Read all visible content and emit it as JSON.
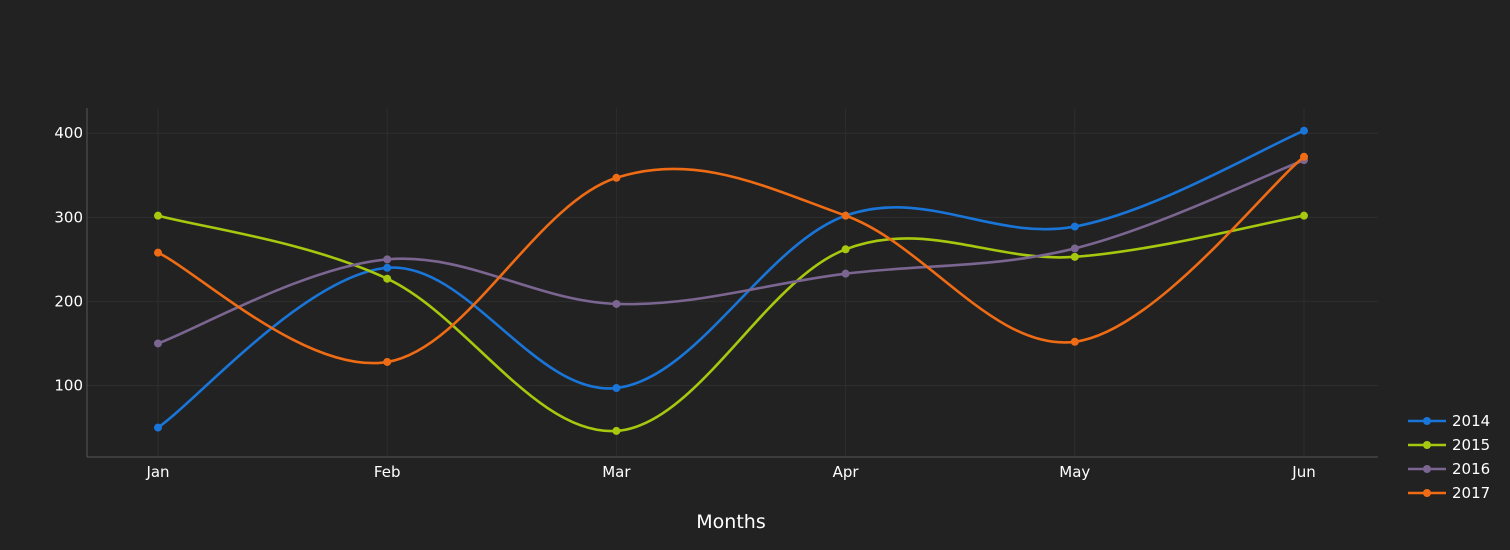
{
  "chart_data": {
    "type": "line",
    "title": "",
    "xlabel": "Months",
    "ylabel": "",
    "categories": [
      "Jan",
      "Feb",
      "Mar",
      "Apr",
      "May",
      "Jun"
    ],
    "yticks": [
      100,
      200,
      300,
      400
    ],
    "ylim": [
      15,
      430
    ],
    "grid": true,
    "line_shape": "spline",
    "legend_position": "bottom-right",
    "background": "#222222",
    "series": [
      {
        "name": "2014",
        "color": "#1975d8",
        "values": [
          50,
          240,
          97,
          302,
          289,
          403
        ]
      },
      {
        "name": "2015",
        "color": "#a6c80e",
        "values": [
          302,
          227,
          46,
          262,
          253,
          302
        ]
      },
      {
        "name": "2016",
        "color": "#7b6591",
        "values": [
          150,
          250,
          197,
          233,
          263,
          368
        ]
      },
      {
        "name": "2017",
        "color": "#ef6c15",
        "values": [
          258,
          128,
          347,
          302,
          152,
          372
        ]
      }
    ]
  }
}
